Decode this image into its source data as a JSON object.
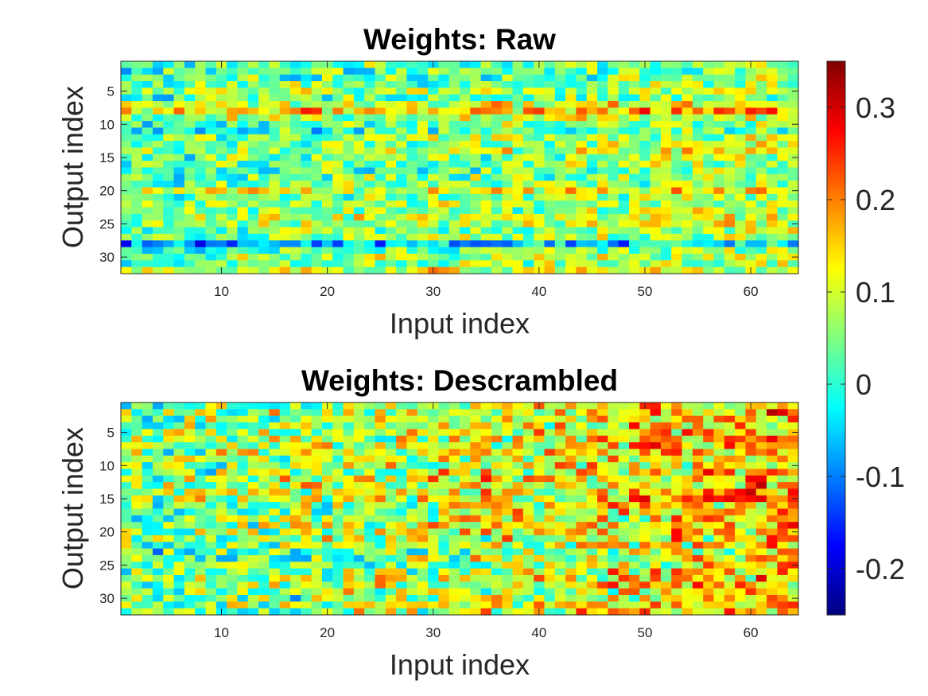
{
  "chart_data": [
    {
      "type": "heatmap",
      "title": "Weights: Raw",
      "xlabel": "Input index",
      "ylabel": "Output index",
      "x_range": [
        1,
        64
      ],
      "y_range": [
        1,
        32
      ],
      "y_direction": "reversed",
      "xticks": [
        10,
        20,
        30,
        40,
        50,
        60
      ],
      "yticks": [
        5,
        10,
        15,
        20,
        25,
        30
      ],
      "rows": 32,
      "cols": 64,
      "colormap": "jet",
      "clim": [
        -0.25,
        0.35
      ],
      "row_profile": [
        0.02,
        0.0,
        0.02,
        0.04,
        0.08,
        0.02,
        0.12,
        0.2,
        0.1,
        0.04,
        0.0,
        0.07,
        0.06,
        0.1,
        0.05,
        0.04,
        0.02,
        0.03,
        0.05,
        0.15,
        0.04,
        0.06,
        0.07,
        0.1,
        0.08,
        0.05,
        0.05,
        -0.12,
        0.02,
        0.07,
        0.05,
        0.12
      ],
      "col_profile_start": -0.01,
      "col_profile_end": 0.08,
      "noise_amplitude": 0.09
    },
    {
      "type": "heatmap",
      "title": "Weights: Descrambled",
      "xlabel": "Input index",
      "ylabel": "Output index",
      "x_range": [
        1,
        64
      ],
      "y_range": [
        1,
        32
      ],
      "y_direction": "reversed",
      "xticks": [
        10,
        20,
        30,
        40,
        50,
        60
      ],
      "yticks": [
        5,
        10,
        15,
        20,
        25,
        30
      ],
      "rows": 32,
      "cols": 64,
      "colormap": "jet",
      "clim": [
        -0.25,
        0.35
      ],
      "row_profile": [
        0.05,
        0.08,
        0.07,
        0.06,
        0.09,
        0.05,
        0.07,
        0.08,
        0.06,
        0.05,
        0.07,
        0.09,
        0.08,
        0.1,
        0.09,
        0.06,
        0.05,
        0.07,
        0.05,
        0.06,
        0.04,
        0.03,
        0.0,
        0.03,
        0.02,
        0.04,
        0.05,
        0.06,
        0.04,
        0.03,
        0.05,
        0.07
      ],
      "col_profile_start": 0.0,
      "col_profile_end": 0.2,
      "noise_amplitude": 0.12
    }
  ],
  "colorbar": {
    "ticks": [
      0.3,
      0.2,
      0.1,
      0,
      -0.1,
      -0.2
    ],
    "tick_labels": [
      "0.3",
      "0.2",
      "0.1",
      "0",
      "-0.1",
      "-0.2"
    ],
    "range": [
      -0.25,
      0.35
    ]
  },
  "colors": {
    "text": "#262626",
    "title": "#000000",
    "background": "#ffffff"
  }
}
